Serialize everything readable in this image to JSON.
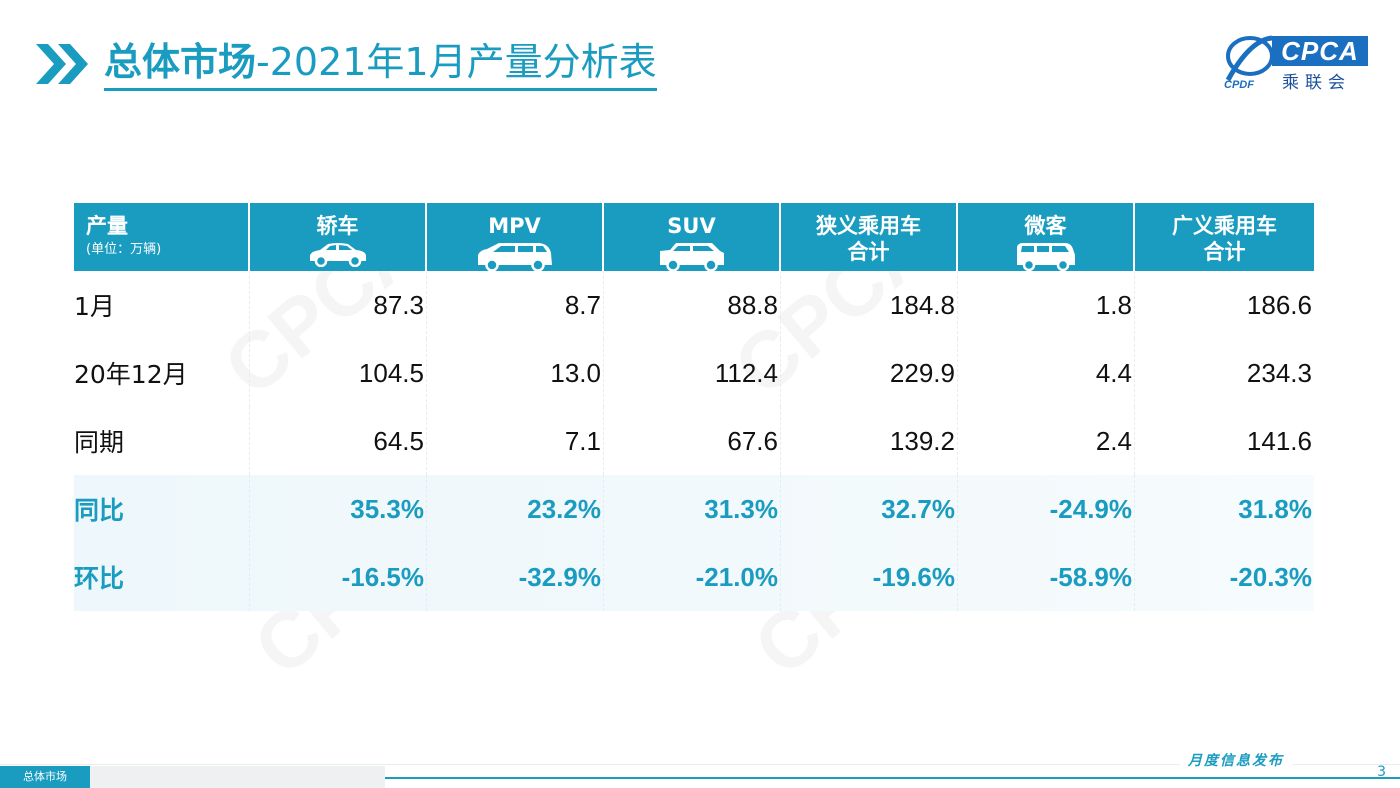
{
  "title": {
    "bold_part": "总体市场",
    "rest": "-2021年1月产量分析表"
  },
  "logo": {
    "text": "CPCA",
    "cn": "乘联会"
  },
  "table": {
    "header": {
      "first_label": "产量",
      "first_sub": "(单位：万辆)",
      "columns": [
        {
          "label": "轿车",
          "icon": "sedan-icon"
        },
        {
          "label": "MPV",
          "icon": "mpv-icon"
        },
        {
          "label": "SUV",
          "icon": "suv-icon"
        },
        {
          "label": "狭义乘用车\n合计",
          "icon": ""
        },
        {
          "label": "微客",
          "icon": "minivan-icon"
        },
        {
          "label": "广义乘用车\n合计",
          "icon": ""
        }
      ]
    },
    "rows": [
      {
        "label": "1月",
        "values": [
          "87.3",
          "8.7",
          "88.8",
          "184.8",
          "1.8",
          "186.6"
        ]
      },
      {
        "label": "20年12月",
        "values": [
          "104.5",
          "13.0",
          "112.4",
          "229.9",
          "4.4",
          "234.3"
        ]
      },
      {
        "label": "同期",
        "values": [
          "64.5",
          "7.1",
          "67.6",
          "139.2",
          "2.4",
          "141.6"
        ]
      },
      {
        "label": "同比",
        "values": [
          "35.3%",
          "23.2%",
          "31.3%",
          "32.7%",
          "-24.9%",
          "31.8%"
        ]
      },
      {
        "label": "环比",
        "values": [
          "-16.5%",
          "-32.9%",
          "-21.0%",
          "-19.6%",
          "-58.9%",
          "-20.3%"
        ]
      }
    ]
  },
  "footer": {
    "tabs": [
      "总体市场",
      "",
      "",
      ""
    ],
    "release": "月度信息发布",
    "page": "3"
  },
  "colors": {
    "accent": "#1a9cc0",
    "logo_blue": "#1b6fc0"
  }
}
